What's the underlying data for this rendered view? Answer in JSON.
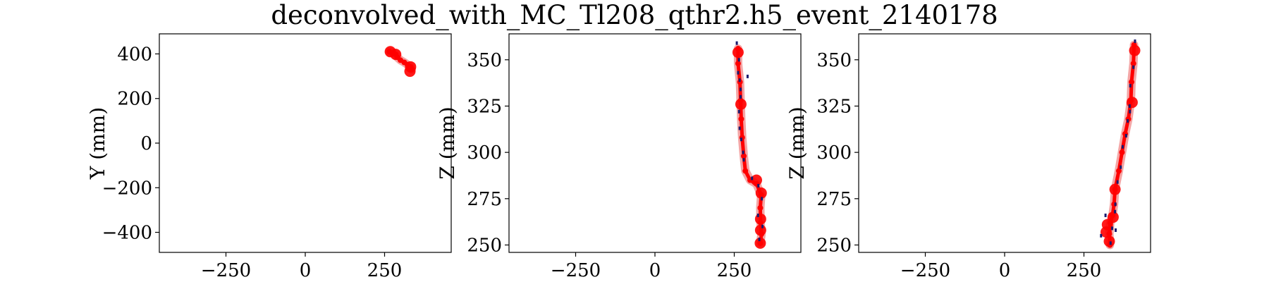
{
  "figure": {
    "title": "deconvolved_with_MC_Tl208_qthr2.h5_event_2140178"
  },
  "colors": {
    "track": "#ff0000",
    "track_band": "#f08080",
    "hits": "#1a1a6e"
  },
  "chart_data": [
    {
      "type": "scatter",
      "panel": "xy",
      "ylabel": "Y (mm)",
      "xlabel": "",
      "xlim": [
        -460,
        460
      ],
      "ylim": [
        -490,
        490
      ],
      "xticks": [
        -250,
        0,
        250
      ],
      "yticks": [
        -400,
        -200,
        0,
        200,
        400
      ],
      "xtick_labels": [
        "−250",
        "0",
        "250"
      ],
      "ytick_labels": [
        "−400",
        "−200",
        "0",
        "200",
        "400"
      ],
      "track": [
        [
          265,
          410
        ],
        [
          275,
          405
        ],
        [
          285,
          398
        ],
        [
          290,
          385
        ],
        [
          300,
          372
        ],
        [
          312,
          362
        ],
        [
          322,
          352
        ],
        [
          332,
          342
        ],
        [
          335,
          330
        ]
      ],
      "blobs": [
        [
          268,
          410
        ],
        [
          285,
          398
        ],
        [
          332,
          342
        ],
        [
          330,
          322
        ]
      ]
    },
    {
      "type": "scatter",
      "panel": "xz",
      "ylabel": "Z (mm)",
      "xlabel": "",
      "xlim": [
        -460,
        460
      ],
      "ylim": [
        246,
        364
      ],
      "xticks": [
        -250,
        0,
        250
      ],
      "yticks": [
        250,
        275,
        300,
        325,
        350
      ],
      "xtick_labels": [
        "−250",
        "0",
        "250"
      ],
      "ytick_labels": [
        "250",
        "275",
        "300",
        "325",
        "350"
      ],
      "track": [
        [
          262,
          356
        ],
        [
          262,
          348
        ],
        [
          268,
          338
        ],
        [
          270,
          328
        ],
        [
          272,
          318
        ],
        [
          275,
          308
        ],
        [
          280,
          298
        ],
        [
          285,
          290
        ],
        [
          300,
          285
        ],
        [
          320,
          283
        ],
        [
          335,
          277
        ],
        [
          332,
          270
        ],
        [
          333,
          262
        ],
        [
          336,
          256
        ],
        [
          332,
          251
        ]
      ],
      "blobs": [
        [
          262,
          354
        ],
        [
          271,
          326
        ],
        [
          320,
          285
        ],
        [
          335,
          278
        ],
        [
          333,
          264
        ],
        [
          333,
          258
        ],
        [
          332,
          251
        ]
      ],
      "hits": [
        [
          258,
          359
        ],
        [
          265,
          350
        ],
        [
          262,
          343
        ],
        [
          267,
          339
        ],
        [
          270,
          334
        ],
        [
          265,
          322
        ],
        [
          267,
          313
        ],
        [
          272,
          307
        ],
        [
          280,
          296
        ],
        [
          306,
          286
        ],
        [
          326,
          282
        ],
        [
          337,
          275
        ],
        [
          325,
          266
        ],
        [
          339,
          260
        ],
        [
          329,
          253
        ],
        [
          292,
          341
        ],
        [
          270,
          330
        ],
        [
          278,
          300
        ]
      ]
    },
    {
      "type": "scatter",
      "panel": "yz",
      "ylabel": "Z (mm)",
      "xlabel": "",
      "xlim": [
        -460,
        460
      ],
      "ylim": [
        246,
        364
      ],
      "xticks": [
        -250,
        0,
        250
      ],
      "yticks": [
        250,
        275,
        300,
        325,
        350
      ],
      "xtick_labels": [
        "−250",
        "0",
        "250"
      ],
      "ytick_labels": [
        "250",
        "275",
        "300",
        "325",
        "350"
      ],
      "track": [
        [
          408,
          358
        ],
        [
          406,
          348
        ],
        [
          400,
          338
        ],
        [
          398,
          328
        ],
        [
          390,
          318
        ],
        [
          380,
          310
        ],
        [
          370,
          300
        ],
        [
          360,
          290
        ],
        [
          348,
          280
        ],
        [
          345,
          272
        ],
        [
          340,
          266
        ],
        [
          333,
          262
        ],
        [
          330,
          256
        ],
        [
          332,
          250
        ]
      ],
      "blobs": [
        [
          410,
          355
        ],
        [
          402,
          327
        ],
        [
          348,
          280
        ],
        [
          342,
          265
        ],
        [
          324,
          261
        ],
        [
          320,
          257
        ],
        [
          330,
          252
        ]
      ],
      "hits": [
        [
          411,
          360
        ],
        [
          406,
          346
        ],
        [
          396,
          336
        ],
        [
          394,
          325
        ],
        [
          388,
          317
        ],
        [
          383,
          309
        ],
        [
          372,
          303
        ],
        [
          366,
          292
        ],
        [
          356,
          284
        ],
        [
          349,
          272
        ],
        [
          318,
          266
        ],
        [
          339,
          259
        ],
        [
          304,
          255
        ],
        [
          350,
          258
        ],
        [
          334,
          251
        ],
        [
          395,
          322
        ],
        [
          348,
          268
        ]
      ]
    }
  ]
}
